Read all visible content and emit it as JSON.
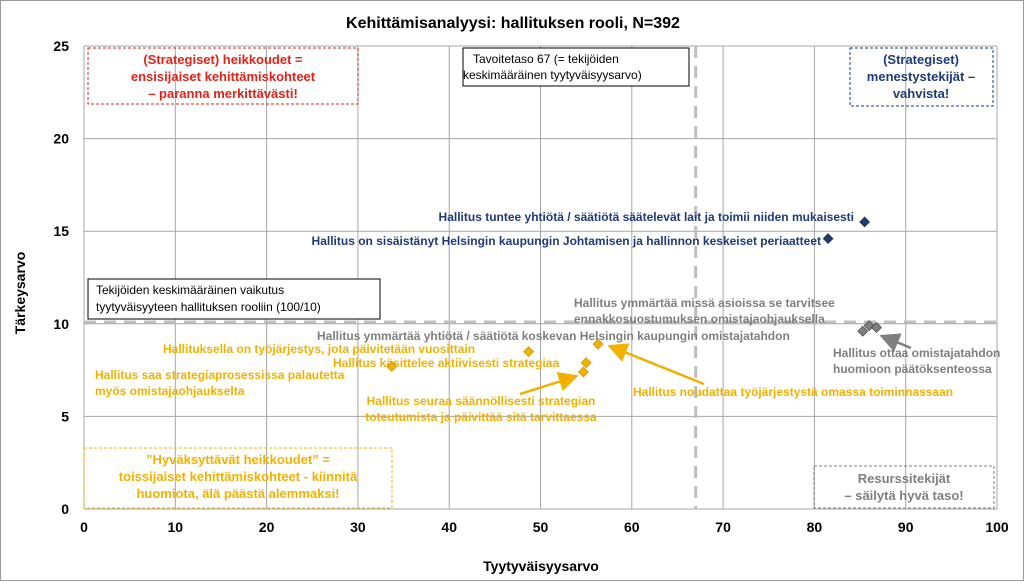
{
  "chart_data": {
    "type": "scatter",
    "title": "Kehittämisanalyysi: hallituksen rooli, N=392",
    "xlabel": "Tyytyväisyysarvo",
    "ylabel": "Tärkeysarvo",
    "xlim": [
      0,
      100
    ],
    "ylim": [
      0,
      25
    ],
    "x_ticks": [
      "0",
      "10",
      "20",
      "30",
      "40",
      "50",
      "60",
      "70",
      "80",
      "90",
      "100"
    ],
    "y_ticks": [
      "0",
      "5",
      "10",
      "15",
      "20",
      "25"
    ],
    "grid": true,
    "reference_lines": {
      "x": 67,
      "y": 10.1
    },
    "colors": {
      "blue": "#1F3A7A",
      "orange": "#F2B100",
      "gray": "#7F7F7F",
      "red": "#E32119",
      "ref_line": "#BFBFBF"
    },
    "points": [
      {
        "x": 85.5,
        "y": 15.5,
        "group": "blue",
        "label": "Hallitus tuntee yhtiötä / säätiötä säätelevät lait ja toimii niiden mukaisesti"
      },
      {
        "x": 81.5,
        "y": 14.6,
        "group": "blue",
        "label": "Hallitus on sisäistänyt Helsingin kaupungin Johtamisen ja hallinnon keskeiset periaatteet"
      },
      {
        "x": 86.0,
        "y": 9.9,
        "group": "gray",
        "label": "Hallitus ymmärtää missä asioissa se tarvitsee ennakkosuostumuksen omistajaohjauksella"
      },
      {
        "x": 85.3,
        "y": 9.6,
        "group": "gray",
        "label": "Hallitus ymmärtää yhtiötä / säätiötä koskevan Helsingin kaupungin omistajatahdon"
      },
      {
        "x": 86.8,
        "y": 9.8,
        "group": "gray",
        "label": "Hallitus ottaa omistajatahdon huomioon päätöksenteossa"
      },
      {
        "x": 56.3,
        "y": 8.9,
        "group": "orange",
        "label": "Hallitus noudattaa työjärjestystä omassa toiminnassaan"
      },
      {
        "x": 48.7,
        "y": 8.5,
        "group": "orange",
        "label": "Hallituksella on työjärjestys, jota päivitetään vuosittain"
      },
      {
        "x": 55.0,
        "y": 7.9,
        "group": "orange",
        "label": "Hallitus käsittelee aktiivisesti strategiaa"
      },
      {
        "x": 54.7,
        "y": 7.4,
        "group": "orange",
        "label": "Hallitus seuraa säännöllisesti strategian toteutumista ja päivittää sitä tarvittaessa"
      },
      {
        "x": 33.7,
        "y": 7.7,
        "group": "orange",
        "label": "Hallitus saa strategiaprosessissa palautetta myös omistajaohjaukselta"
      }
    ],
    "annotations": {
      "quadrant_top_left": "(Strategiset) heikkoudet = ensisijaiset kehittämiskohteet – paranna merkittävästi!",
      "quadrant_top_right": "(Strategiset) menestystekijät – vahvista!",
      "quadrant_bottom_left": "”Hyväksyttävät heikkoudet” = toissijaiset kehittämiskohteet - kiinnitä huomiota, älä päästä alemmaksi!",
      "quadrant_bottom_right": "Resurssitekijät – säilytä hyvä taso!",
      "target_level": "Tavoitetaso 67 (= tekijöiden keskimääräinen tyytyväisyysarvo)",
      "avg_importance": "Tekijöiden keskimääräinen vaikutus tyytyväisyyteen hallituksen rooliin (100/10)"
    }
  }
}
